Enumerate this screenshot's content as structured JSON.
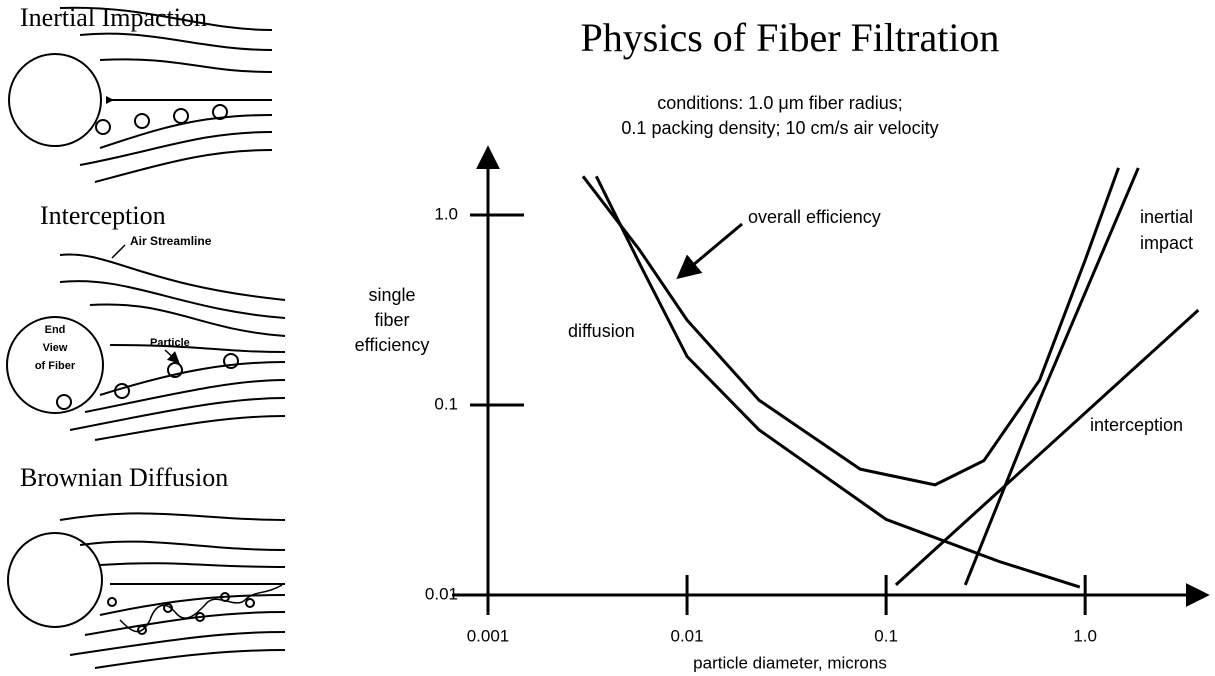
{
  "chart_data": {
    "type": "line",
    "title": "Physics of Fiber Filtration",
    "subtitle_lines": [
      "conditions:  1.0 μm fiber radius;",
      "0.1 packing density; 10 cm/s air velocity"
    ],
    "x_label": "particle diameter, microns",
    "y_label_lines": [
      "single",
      "fiber",
      "efficiency"
    ],
    "log_x": true,
    "log_y": true,
    "color": "#000000",
    "xlim": [
      0.001,
      4
    ],
    "ylim": [
      0.01,
      2.2
    ],
    "xticks": [
      0.001,
      0.01,
      0.1,
      {
        "value": 1,
        "label": "1.0"
      }
    ],
    "yticks": [
      0.01,
      0.1,
      {
        "value": 1,
        "label": "1.0"
      }
    ],
    "series": [
      {
        "name": "overall efficiency",
        "x": [
          0.003,
          0.0058,
          0.01,
          0.023,
          0.074,
          0.176,
          0.31,
          0.59,
          1.0,
          1.47
        ],
        "values": [
          1.6,
          0.65,
          0.28,
          0.106,
          0.046,
          0.038,
          0.051,
          0.135,
          0.58,
          1.77
        ]
      },
      {
        "name": "diffusion",
        "x": [
          0.0035,
          0.0058,
          0.01,
          0.023,
          0.1,
          0.37,
          0.94
        ],
        "values": [
          1.6,
          0.55,
          0.18,
          0.074,
          0.025,
          0.015,
          0.011
        ]
      },
      {
        "name": "inertial impact",
        "x": [
          0.25,
          0.59,
          1.85
        ],
        "values": [
          0.0113,
          0.106,
          1.77
        ]
      },
      {
        "name": "interception",
        "x": [
          0.112,
          3.7
        ],
        "values": [
          0.0113,
          0.316
        ]
      }
    ]
  },
  "diagrams": [
    {
      "title": "Inertial Impaction"
    },
    {
      "title": "Interception",
      "labels": [
        "Air Streamline",
        "End",
        "View",
        "of Fiber",
        "Particle"
      ]
    },
    {
      "title": "Brownian Diffusion"
    }
  ]
}
